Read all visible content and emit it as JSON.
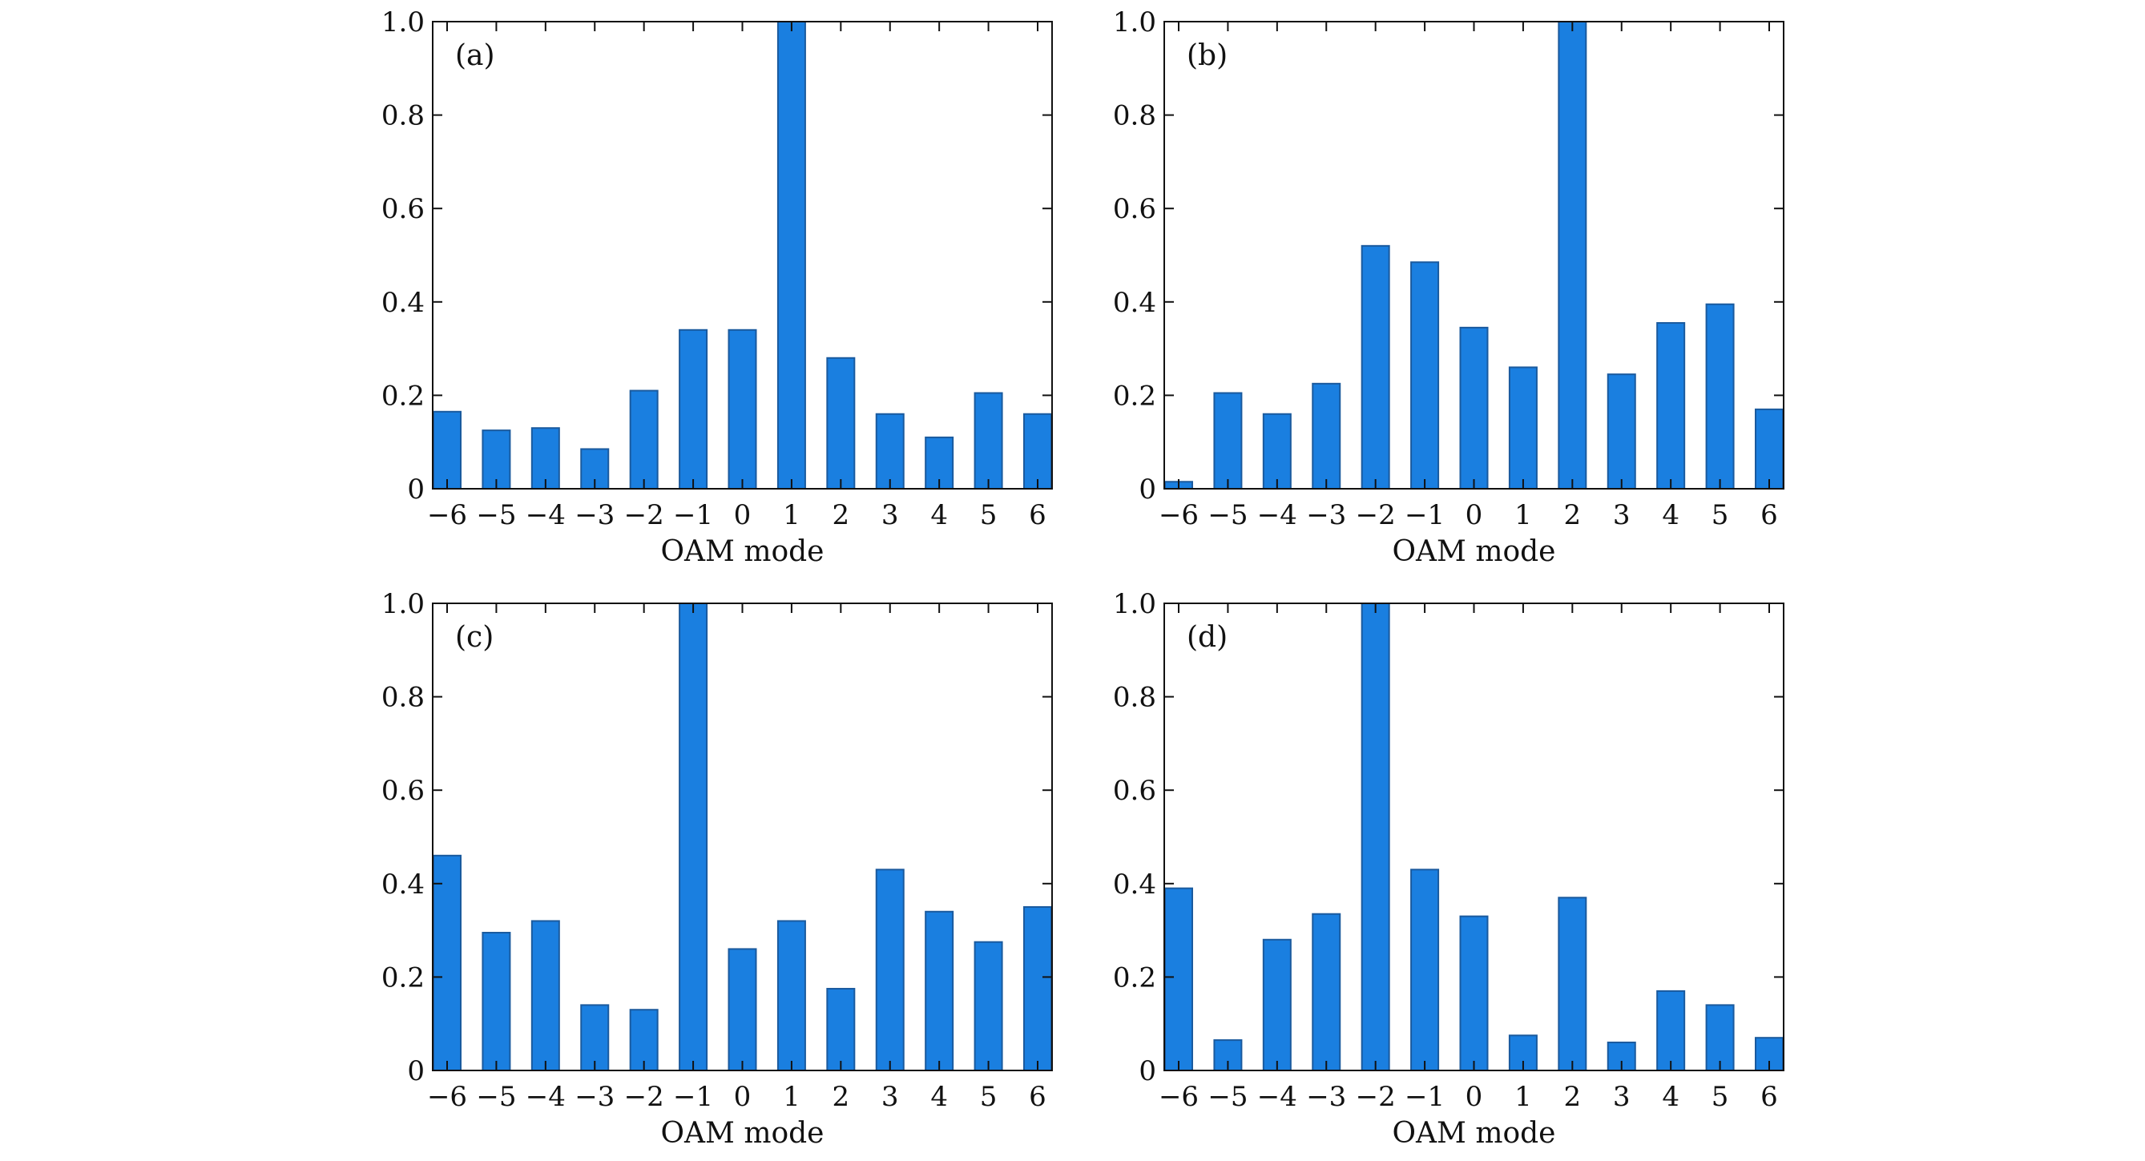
{
  "colors": {
    "bar_fill": "#1a7fe0",
    "bar_edge": "#1a5a9e",
    "axis": "#111111"
  },
  "chart_data": [
    {
      "type": "bar",
      "panel_label": "(a)",
      "categories": [
        "−6",
        "−5",
        "−4",
        "−3",
        "−2",
        "−1",
        "0",
        "1",
        "2",
        "3",
        "4",
        "5",
        "6"
      ],
      "values": [
        0.165,
        0.125,
        0.13,
        0.085,
        0.21,
        0.34,
        0.34,
        1.0,
        0.28,
        0.16,
        0.11,
        0.205,
        0.16
      ],
      "xlabel": "OAM mode",
      "ylabel": "",
      "ylim": [
        0,
        1.0
      ],
      "yticks": [
        "0",
        "0.2",
        "0.4",
        "0.6",
        "0.8",
        "1.0"
      ],
      "grid": false
    },
    {
      "type": "bar",
      "panel_label": "(b)",
      "categories": [
        "−6",
        "−5",
        "−4",
        "−3",
        "−2",
        "−1",
        "0",
        "1",
        "2",
        "3",
        "4",
        "5",
        "6"
      ],
      "values": [
        0.015,
        0.205,
        0.16,
        0.225,
        0.52,
        0.485,
        0.345,
        0.26,
        1.0,
        0.245,
        0.355,
        0.395,
        0.17
      ],
      "xlabel": "OAM mode",
      "ylabel": "",
      "ylim": [
        0,
        1.0
      ],
      "yticks": [
        "0",
        "0.2",
        "0.4",
        "0.6",
        "0.8",
        "1.0"
      ],
      "grid": false
    },
    {
      "type": "bar",
      "panel_label": "(c)",
      "categories": [
        "−6",
        "−5",
        "−4",
        "−3",
        "−2",
        "−1",
        "0",
        "1",
        "2",
        "3",
        "4",
        "5",
        "6"
      ],
      "values": [
        0.46,
        0.295,
        0.32,
        0.14,
        0.13,
        1.0,
        0.26,
        0.32,
        0.175,
        0.43,
        0.34,
        0.275,
        0.35
      ],
      "xlabel": "OAM mode",
      "ylabel": "",
      "ylim": [
        0,
        1.0
      ],
      "yticks": [
        "0",
        "0.2",
        "0.4",
        "0.6",
        "0.8",
        "1.0"
      ],
      "grid": false
    },
    {
      "type": "bar",
      "panel_label": "(d)",
      "categories": [
        "−6",
        "−5",
        "−4",
        "−3",
        "−2",
        "−1",
        "0",
        "1",
        "2",
        "3",
        "4",
        "5",
        "6"
      ],
      "values": [
        0.39,
        0.065,
        0.28,
        0.335,
        1.0,
        0.43,
        0.33,
        0.075,
        0.37,
        0.06,
        0.17,
        0.14,
        0.07
      ],
      "xlabel": "OAM mode",
      "ylabel": "",
      "ylim": [
        0,
        1.0
      ],
      "yticks": [
        "0",
        "0.2",
        "0.4",
        "0.6",
        "0.8",
        "1.0"
      ],
      "grid": false
    }
  ]
}
